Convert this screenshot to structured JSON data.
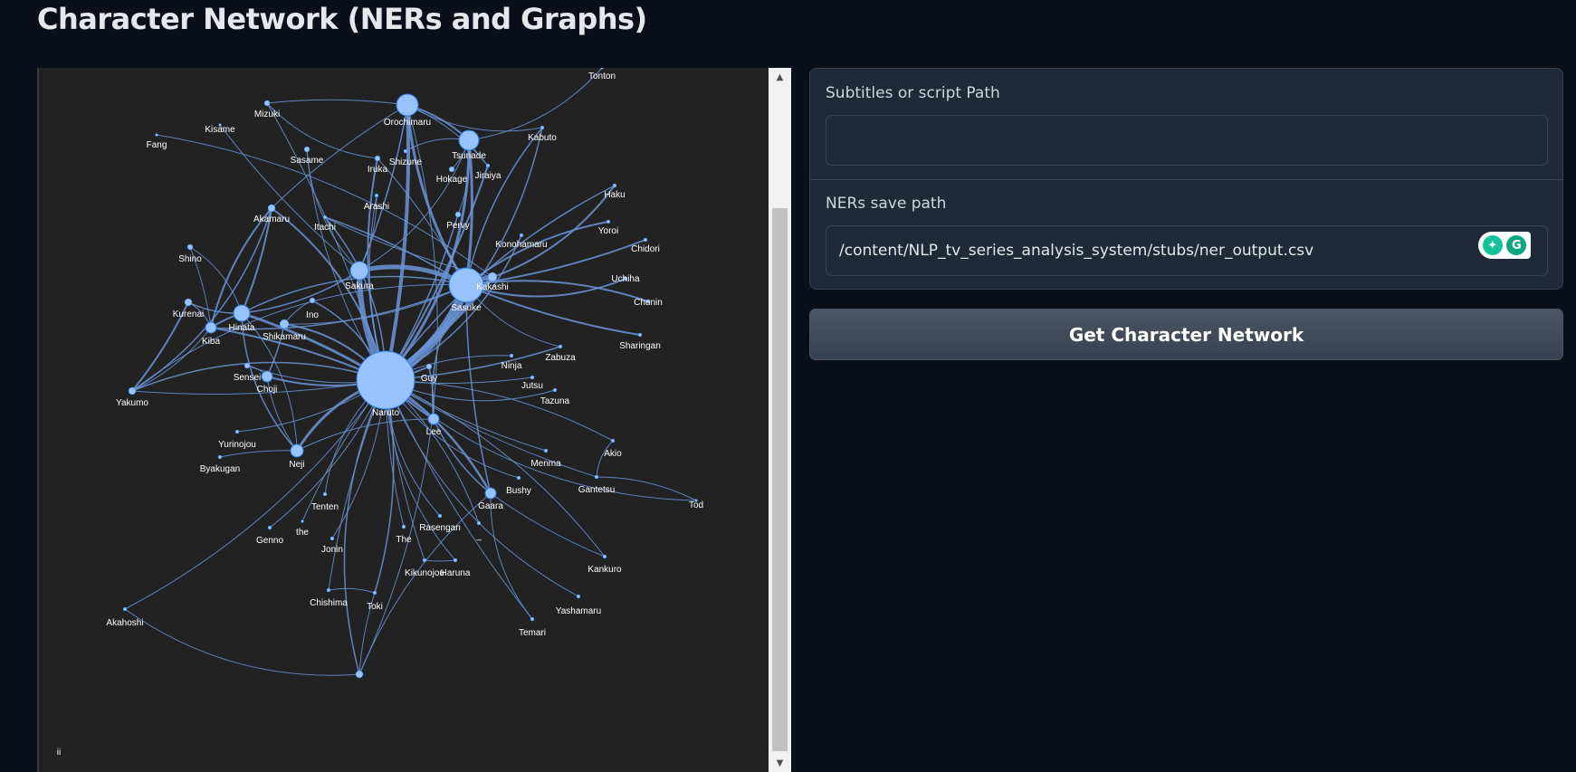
{
  "page": {
    "title": "Character Network (NERs and Graphs)"
  },
  "form": {
    "subtitles_label": "Subtitles or script Path",
    "subtitles_value": "",
    "ners_label": "NERs save path",
    "ners_value": "/content/NLP_tv_series_analysis_system/stubs/ner_output.csv",
    "submit_label": "Get Character Network"
  },
  "graph": {
    "background": "#222222",
    "node_color": "#97c2fc",
    "edge_color": "#6b94d6",
    "corner_label": "ii",
    "nodes": [
      {
        "id": "Naruto",
        "label": "Naruto"
      },
      {
        "id": "Sasuke",
        "label": "Sasuke"
      },
      {
        "id": "Kakashi",
        "label": "Kakashi"
      },
      {
        "id": "Sakura",
        "label": "Sakura"
      },
      {
        "id": "Orochimaru",
        "label": "Orochimaru"
      },
      {
        "id": "Tsunade",
        "label": "Tsunade"
      },
      {
        "id": "Hinata",
        "label": "Hinata"
      },
      {
        "id": "Neji",
        "label": "Neji"
      },
      {
        "id": "Gaara",
        "label": "Gaara"
      },
      {
        "id": "Lee",
        "label": "Lee"
      },
      {
        "id": "Shikamaru",
        "label": "Shikamaru"
      },
      {
        "id": "Choji",
        "label": "Choji"
      },
      {
        "id": "Kiba",
        "label": "Kiba"
      },
      {
        "id": "Akamaru",
        "label": "Akamaru"
      },
      {
        "id": "Kurenai",
        "label": "Kurenai"
      },
      {
        "id": "Shino",
        "label": "Shino"
      },
      {
        "id": "Yakumo",
        "label": "Yakumo"
      },
      {
        "id": "Mizuki",
        "label": "Mizuki"
      },
      {
        "id": "Kisame",
        "label": "Kisame"
      },
      {
        "id": "Fang",
        "label": "Fang"
      },
      {
        "id": "Sasame",
        "label": "Sasame"
      },
      {
        "id": "Iruka",
        "label": "Iruka"
      },
      {
        "id": "Shizune",
        "label": "Shizune"
      },
      {
        "id": "Hokage",
        "label": "Hokage"
      },
      {
        "id": "Jiraiya",
        "label": "Jiraiya"
      },
      {
        "id": "Kabuto",
        "label": "Kabuto"
      },
      {
        "id": "Tonton",
        "label": "Tonton"
      },
      {
        "id": "Arashi",
        "label": "Arashi"
      },
      {
        "id": "Itachi",
        "label": "Itachi"
      },
      {
        "id": "Pervy",
        "label": "Pervy"
      },
      {
        "id": "Konohamaru",
        "label": "Konohamaru"
      },
      {
        "id": "Haku",
        "label": "Haku"
      },
      {
        "id": "Yoroi",
        "label": "Yoroi"
      },
      {
        "id": "Chidori",
        "label": "Chidori"
      },
      {
        "id": "Uchiha",
        "label": "Uchiha"
      },
      {
        "id": "Chunin",
        "label": "Chunin"
      },
      {
        "id": "Sharingan",
        "label": "Sharingan"
      },
      {
        "id": "Zabuza",
        "label": "Zabuza"
      },
      {
        "id": "Ninja",
        "label": "Ninja"
      },
      {
        "id": "Jutsu",
        "label": "Jutsu"
      },
      {
        "id": "Tazuna",
        "label": "Tazuna"
      },
      {
        "id": "Ino",
        "label": "Ino"
      },
      {
        "id": "Sensei",
        "label": "Sensei"
      },
      {
        "id": "Guy",
        "label": "Guy"
      },
      {
        "id": "Yurinojou",
        "label": "Yurinojou"
      },
      {
        "id": "Byakugan",
        "label": "Byakugan"
      },
      {
        "id": "Akio",
        "label": "Akio"
      },
      {
        "id": "Menma",
        "label": "Menma"
      },
      {
        "id": "Gantetsu",
        "label": "Gantetsu"
      },
      {
        "id": "Tod",
        "label": "Tod"
      },
      {
        "id": "Bushy",
        "label": "Bushy"
      },
      {
        "id": "Tenten",
        "label": "Tenten"
      },
      {
        "id": "Genno",
        "label": "Genno"
      },
      {
        "id": "the",
        "label": "the"
      },
      {
        "id": "Jonin",
        "label": "Jonin"
      },
      {
        "id": "The",
        "label": "The"
      },
      {
        "id": "Rasengan",
        "label": "Rasengan"
      },
      {
        "id": "_",
        "label": "_"
      },
      {
        "id": "Kikunojou",
        "label": "Kikunojou"
      },
      {
        "id": "Haruna",
        "label": "Haruna"
      },
      {
        "id": "Kankuro",
        "label": "Kankuro"
      },
      {
        "id": "Yashamaru",
        "label": "Yashamaru"
      },
      {
        "id": "Temari",
        "label": "Temari"
      },
      {
        "id": "Chishima",
        "label": "Chishima"
      },
      {
        "id": "Toki",
        "label": "Toki"
      },
      {
        "id": "Akahoshi",
        "label": "Akahoshi"
      },
      {
        "id": "Bottom",
        "label": ""
      }
    ]
  }
}
